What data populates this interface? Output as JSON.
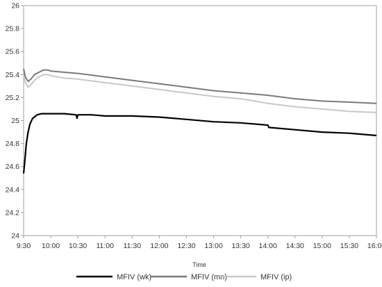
{
  "chart_data": {
    "type": "line",
    "xlabel": "Time",
    "ylabel": "",
    "ylim": [
      24,
      26
    ],
    "xlim": [
      "9:30",
      "16:00"
    ],
    "y_ticks": [
      "24",
      "24.2",
      "24.4",
      "24.6",
      "24.8",
      "25",
      "25.2",
      "25.4",
      "25.6",
      "25.8",
      "26"
    ],
    "x_ticks": [
      "9:30",
      "10:00",
      "10:30",
      "11:00",
      "11:30",
      "12:00",
      "12:30",
      "13:00",
      "13:30",
      "14:00",
      "14:30",
      "15:00",
      "15:30",
      "16:00"
    ],
    "grid": false,
    "legend_position": "bottom",
    "series": [
      {
        "name": "MFIV (wk)",
        "color": "#000000",
        "x": [
          "9:30",
          "9:31",
          "9:33",
          "9:35",
          "9:37",
          "9:40",
          "9:45",
          "9:50",
          "9:55",
          "10:00",
          "10:05",
          "10:15",
          "10:28",
          "10:29",
          "10:30",
          "10:45",
          "11:00",
          "11:30",
          "12:00",
          "12:30",
          "13:00",
          "13:30",
          "14:00",
          "14:01",
          "14:30",
          "15:00",
          "15:30",
          "16:00"
        ],
        "values": [
          24.54,
          24.62,
          24.8,
          24.9,
          24.97,
          25.02,
          25.05,
          25.06,
          25.06,
          25.06,
          25.06,
          25.06,
          25.05,
          25.02,
          25.05,
          25.05,
          25.04,
          25.04,
          25.03,
          25.01,
          24.99,
          24.98,
          24.96,
          24.94,
          24.92,
          24.9,
          24.89,
          24.87
        ]
      },
      {
        "name": "MFIV (mn)",
        "color": "#7a7a7a",
        "x": [
          "9:30",
          "9:32",
          "9:35",
          "9:38",
          "9:42",
          "9:47",
          "9:52",
          "9:57",
          "10:00",
          "10:15",
          "10:30",
          "11:00",
          "11:30",
          "12:00",
          "12:30",
          "13:00",
          "13:30",
          "14:00",
          "14:30",
          "15:00",
          "15:30",
          "16:00"
        ],
        "values": [
          25.45,
          25.38,
          25.34,
          25.36,
          25.4,
          25.42,
          25.44,
          25.44,
          25.43,
          25.42,
          25.41,
          25.38,
          25.35,
          25.32,
          25.29,
          25.26,
          25.24,
          25.22,
          25.19,
          25.17,
          25.16,
          25.15
        ]
      },
      {
        "name": "MFIV (ip)",
        "color": "#c8c8c8",
        "x": [
          "9:30",
          "9:32",
          "9:35",
          "9:38",
          "9:42",
          "9:47",
          "9:52",
          "9:57",
          "10:00",
          "10:15",
          "10:30",
          "11:00",
          "11:30",
          "12:00",
          "12:30",
          "13:00",
          "13:30",
          "14:00",
          "14:30",
          "15:00",
          "15:30",
          "16:00"
        ],
        "values": [
          25.4,
          25.33,
          25.29,
          25.31,
          25.35,
          25.38,
          25.4,
          25.4,
          25.39,
          25.37,
          25.36,
          25.33,
          25.3,
          25.27,
          25.24,
          25.21,
          25.19,
          25.15,
          25.12,
          25.1,
          25.08,
          25.07
        ]
      }
    ]
  }
}
